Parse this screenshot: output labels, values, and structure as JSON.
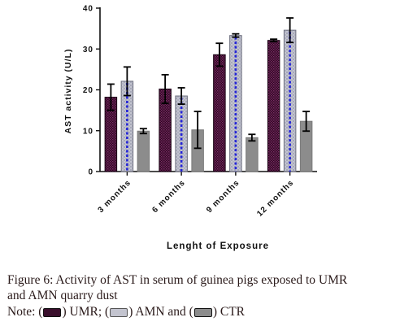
{
  "chart_data": {
    "type": "bar",
    "categories": [
      "3 months",
      "6 months",
      "9 months",
      "12 months"
    ],
    "series": [
      {
        "name": "UMR",
        "values": [
          18.2,
          20.2,
          28.6,
          32.1
        ],
        "errors": [
          3.2,
          3.5,
          2.8,
          0.3
        ],
        "color": "#3a0f2c"
      },
      {
        "name": "AMN",
        "values": [
          22.1,
          18.5,
          33.3,
          34.6
        ],
        "errors": [
          3.5,
          2.0,
          0.4,
          3.0
        ],
        "color": "#b4b6c4"
      },
      {
        "name": "CTR",
        "values": [
          9.9,
          10.2,
          8.3,
          12.3
        ],
        "errors": [
          0.6,
          4.5,
          0.8,
          2.4
        ],
        "color": "#8c8c8c"
      }
    ],
    "xlabel": "Lenght of Exposure",
    "ylabel": "AST activity (U/L)",
    "ylim": [
      0,
      40
    ],
    "yticks": [
      0,
      10,
      20,
      30,
      40
    ],
    "grid": false
  },
  "caption": {
    "line1": "Figure 6: Activity of AST in serum of guinea pigs exposed to UMR",
    "line2": "and AMN quarry dust",
    "note_prefix": "Note: (",
    "umr_text": ") UMR; (",
    "amn_text": ") AMN and (",
    "ctr_text": ") CTR"
  }
}
